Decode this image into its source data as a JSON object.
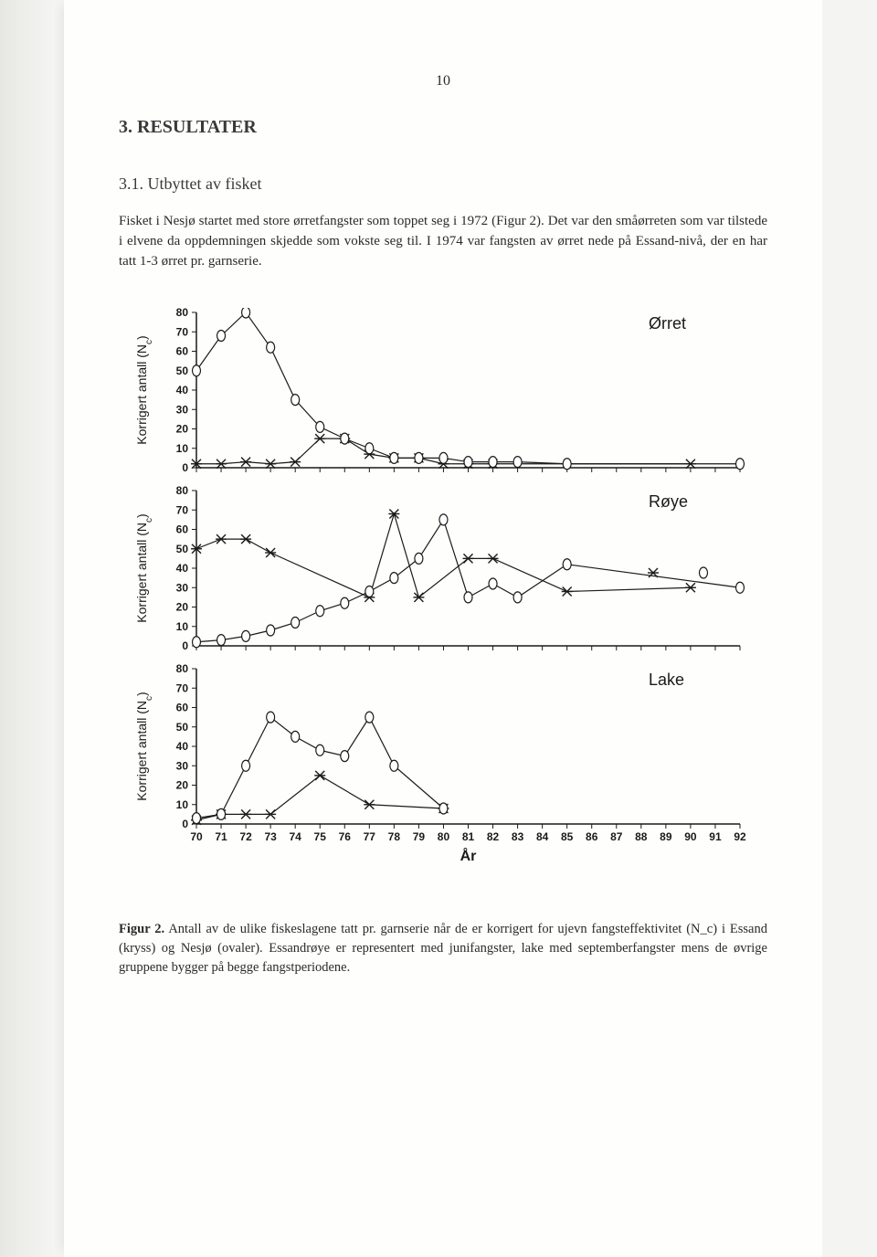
{
  "page_number": "10",
  "section_title": "3. RESULTATER",
  "subsection_title": "3.1. Utbyttet av fisket",
  "body_text": "Fisket i Nesjø startet med store ørretfangster som toppet seg i 1972 (Figur 2). Det var den småørreten som var tilstede i elvene da oppdemningen skjedde som vokste seg til. I 1974 var fangsten av ørret nede på Essand-nivå, der en har tatt 1-3 ørret pr. garnserie.",
  "caption_lead": "Figur 2.",
  "caption_text": " Antall av de ulike fiskeslagene tatt pr. garnserie når de er korrigert for ujevn fangsteffektivitet (N_c) i Essand (kryss) og Nesjø (ovaler). Essandrøye er representert med junifangster, lake med septemberfangster mens de øvrige gruppene bygger på begge fangstperiodene.",
  "chart": {
    "type": "line-multiples",
    "x_axis_label": "År",
    "y_axis_label": "Korrigert antall (N_c)",
    "x_ticks": [
      70,
      71,
      72,
      73,
      74,
      75,
      76,
      77,
      78,
      79,
      80,
      81,
      82,
      83,
      84,
      85,
      86,
      87,
      88,
      89,
      90,
      91,
      92
    ],
    "y_ticks": [
      0,
      10,
      20,
      30,
      40,
      50,
      60,
      70,
      80
    ],
    "ylim": [
      0,
      80
    ],
    "background_color": "#fefefd",
    "axis_color": "#1a1a1a",
    "line_color": "#1a1a1a",
    "marker_fill": "#ffffff",
    "marker_stroke": "#1a1a1a",
    "label_fontsize": 14,
    "tick_fontsize": 12,
    "line_width": 1.2,
    "marker_size": 5,
    "panels": [
      {
        "title": "Ørret",
        "nesjo": {
          "marker": "oval",
          "x": [
            70,
            71,
            72,
            73,
            74,
            75,
            76,
            77,
            78,
            79,
            80,
            81,
            82,
            83,
            85,
            92
          ],
          "y": [
            50,
            68,
            80,
            62,
            35,
            21,
            15,
            10,
            5,
            5,
            5,
            3,
            3,
            3,
            2,
            2
          ]
        },
        "essand": {
          "marker": "x",
          "x": [
            70,
            71,
            72,
            73,
            74,
            75,
            76,
            77,
            78,
            79,
            80,
            81,
            82,
            90
          ],
          "y": [
            2,
            2,
            3,
            2,
            3,
            15,
            15,
            7,
            5,
            5,
            2,
            2,
            2,
            2
          ]
        }
      },
      {
        "title": "Røye",
        "nesjo": {
          "marker": "oval",
          "x": [
            70,
            71,
            72,
            73,
            74,
            75,
            76,
            77,
            78,
            79,
            80,
            81,
            82,
            83,
            85,
            92
          ],
          "y": [
            2,
            3,
            5,
            8,
            12,
            18,
            22,
            28,
            35,
            45,
            65,
            25,
            32,
            25,
            42,
            30
          ]
        },
        "essand": {
          "marker": "x",
          "x": [
            70,
            71,
            72,
            73,
            77,
            78,
            79,
            81,
            82,
            85,
            90
          ],
          "y": [
            50,
            55,
            55,
            48,
            25,
            68,
            25,
            45,
            45,
            28,
            30
          ]
        }
      },
      {
        "title": "Lake",
        "nesjo": {
          "marker": "oval",
          "x": [
            70,
            71,
            72,
            73,
            74,
            75,
            76,
            77,
            78,
            80
          ],
          "y": [
            3,
            5,
            30,
            55,
            45,
            38,
            35,
            55,
            30,
            8
          ]
        },
        "essand": {
          "marker": "x",
          "x": [
            70,
            71,
            72,
            73,
            75,
            77,
            80
          ],
          "y": [
            2,
            5,
            5,
            5,
            25,
            10,
            8
          ]
        }
      }
    ]
  }
}
